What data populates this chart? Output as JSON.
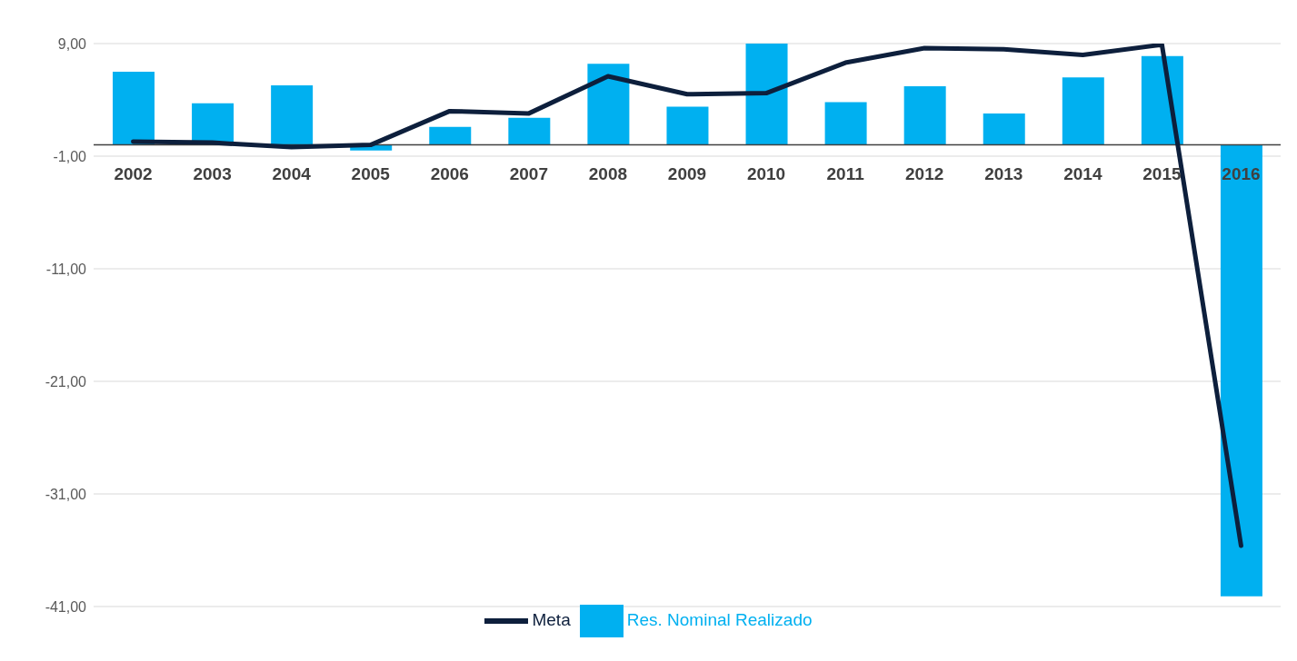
{
  "chart_data": {
    "type": "bar",
    "categories": [
      "2002",
      "2003",
      "2004",
      "2005",
      "2006",
      "2007",
      "2008",
      "2009",
      "2010",
      "2011",
      "2012",
      "2013",
      "2014",
      "2015",
      "2016"
    ],
    "series": [
      {
        "name": "Res. Nominal Realizado",
        "color": "#00b0f0",
        "values": [
          6.5,
          3.7,
          5.3,
          -0.5,
          1.6,
          2.4,
          7.2,
          3.4,
          9.0,
          3.8,
          5.2,
          2.8,
          6.0,
          7.9,
          -40.1
        ]
      },
      {
        "name": "Meta",
        "type": "line",
        "color": "#0d1f3c",
        "values": [
          0.3,
          0.2,
          -0.2,
          0.0,
          3.0,
          2.8,
          6.1,
          4.5,
          4.6,
          7.3,
          8.6,
          8.5,
          8.0,
          8.9,
          -35.6
        ]
      }
    ],
    "ylim": [
      -41,
      9
    ],
    "yticks": [
      {
        "value": 9,
        "label": "9,00"
      },
      {
        "value": -1,
        "label": "-1,00"
      },
      {
        "value": -11,
        "label": "-11,00"
      },
      {
        "value": -21,
        "label": "-21,00"
      },
      {
        "value": -31,
        "label": "-31,00"
      },
      {
        "value": -41,
        "label": "-41,00"
      }
    ],
    "grid": "y",
    "legend": "bottom",
    "marker": "none",
    "line_style": "solid"
  }
}
